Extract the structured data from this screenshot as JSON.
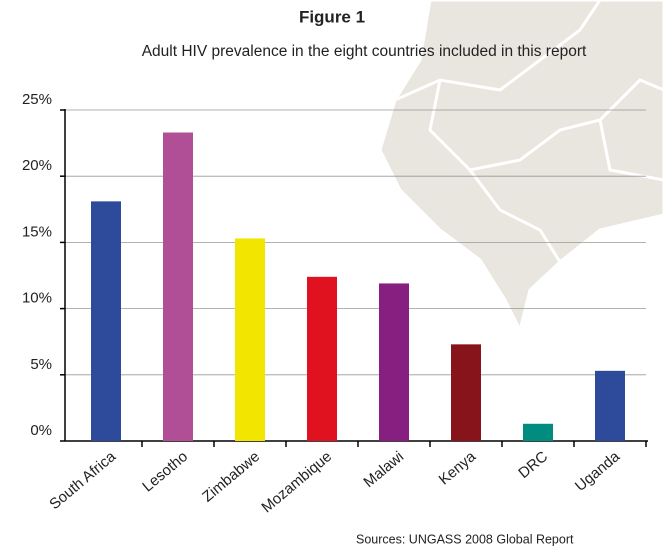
{
  "chart_data": {
    "type": "bar",
    "title": "Figure 1",
    "subtitle": "Adult HIV prevalence in the eight countries included in this report",
    "categories": [
      "South Africa",
      "Lesotho",
      "Zimbabwe",
      "Mozambique",
      "Malawi",
      "Kenya",
      "DRC",
      "Uganda"
    ],
    "values": [
      18.1,
      23.3,
      15.3,
      12.4,
      11.9,
      7.3,
      1.3,
      5.3
    ],
    "colors": [
      "#2e4a9a",
      "#b04f96",
      "#f2e500",
      "#e0121f",
      "#861f7f",
      "#86141a",
      "#008d7f",
      "#2e4a9a"
    ],
    "ylim": [
      0,
      25
    ],
    "yticks": [
      {
        "value": 0,
        "label": "0%"
      },
      {
        "value": 5,
        "label": "5%"
      },
      {
        "value": 10,
        "label": "10%"
      },
      {
        "value": 15,
        "label": "15%"
      },
      {
        "value": 20,
        "label": "20%"
      },
      {
        "value": 25,
        "label": "25%"
      }
    ],
    "grid": true,
    "source": "Sources: UNGASS 2008 Global Report"
  }
}
